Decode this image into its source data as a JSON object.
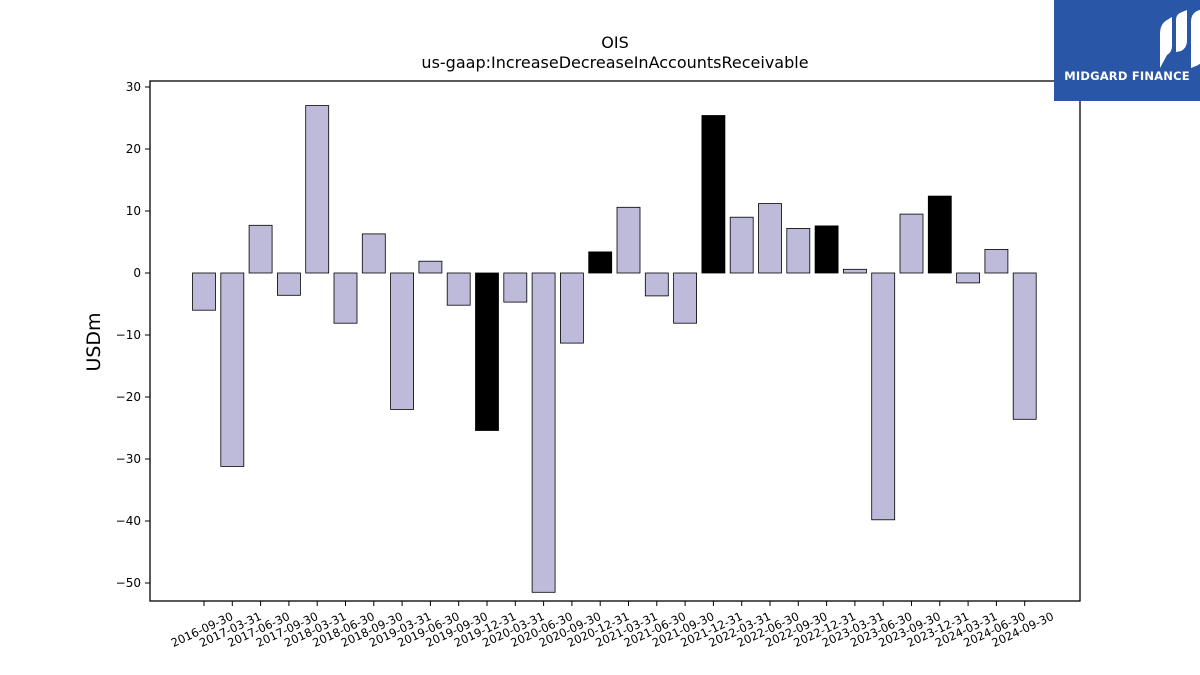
{
  "logo": {
    "text": "MIDGARD FINANCE",
    "background": "#2a56a8"
  },
  "chart_data": {
    "type": "bar",
    "title": "OIS",
    "subtitle": "us-gaap:IncreaseDecreaseInAccountsReceivable",
    "xlabel": "",
    "ylabel": "USDm",
    "ylim": [
      -52.5,
      31
    ],
    "yticks": [
      30,
      20,
      10,
      0,
      -10,
      -20,
      -30,
      -40,
      -50
    ],
    "grid": false,
    "colors": {
      "default": "#bebad9",
      "highlight": "#000000",
      "edge": "#000000"
    },
    "categories": [
      "2016-09-30",
      "2017-03-31",
      "2017-06-30",
      "2017-09-30",
      "2018-03-31",
      "2018-06-30",
      "2018-09-30",
      "2019-03-31",
      "2019-06-30",
      "2019-09-30",
      "2019-12-31",
      "2020-03-31",
      "2020-06-30",
      "2020-09-30",
      "2020-12-31",
      "2021-03-31",
      "2021-06-30",
      "2021-09-30",
      "2021-12-31",
      "2022-03-31",
      "2022-06-30",
      "2022-09-30",
      "2022-12-31",
      "2023-03-31",
      "2023-06-30",
      "2023-09-30",
      "2023-12-31",
      "2024-03-31",
      "2024-06-30",
      "2024-09-30"
    ],
    "values": [
      -6.0,
      -31.2,
      7.7,
      -3.6,
      27.0,
      -8.1,
      6.3,
      -22.0,
      1.9,
      -5.2,
      -25.4,
      -4.7,
      -51.5,
      -11.3,
      3.4,
      10.6,
      -3.7,
      -8.1,
      25.4,
      9.0,
      11.2,
      7.2,
      7.6,
      0.6,
      -39.8,
      9.5,
      12.4,
      -1.6,
      3.8,
      -23.6
    ],
    "highlight": [
      false,
      false,
      false,
      false,
      false,
      false,
      false,
      false,
      false,
      false,
      true,
      false,
      false,
      false,
      true,
      false,
      false,
      false,
      true,
      false,
      false,
      false,
      true,
      false,
      false,
      false,
      true,
      false,
      false,
      false
    ]
  }
}
